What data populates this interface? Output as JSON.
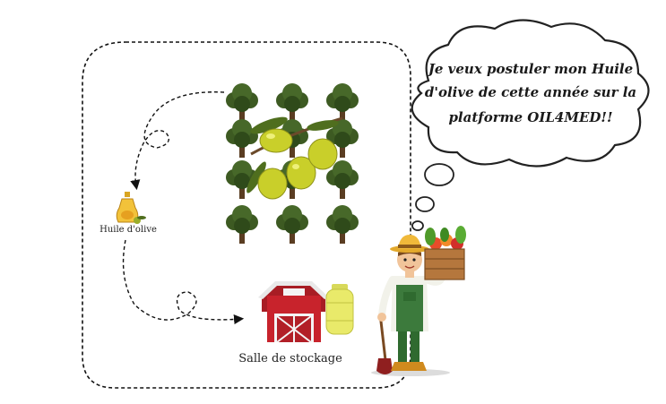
{
  "thought_bubble": {
    "lines": [
      "Je veux postuler mon Huile",
      "d'olive de cette année sur la",
      "platforme OIL4MED!!"
    ]
  },
  "labels": {
    "olive_oil": "Huile d'olive",
    "storage": "Salle de stockage"
  },
  "colors": {
    "tree_foliage": "#3d5a22",
    "olive": "#c9cf2a",
    "barn_red": "#c8232c",
    "tank_yellow": "#e9ea6a",
    "farmer_overalls": "#3c7a3c"
  },
  "icons": {
    "trees": "olive-tree-grid-icon",
    "olives": "olive-branch-icon",
    "oil": "olive-oil-bottle-icon",
    "barn": "barn-icon",
    "tank": "gas-tank-icon",
    "farmer": "farmer-icon"
  }
}
